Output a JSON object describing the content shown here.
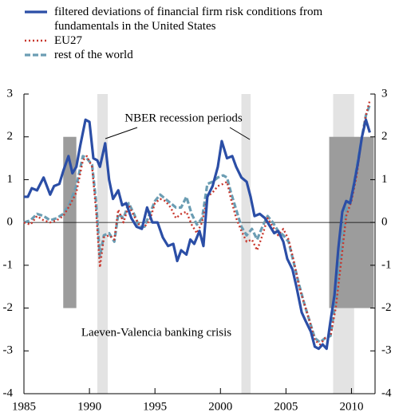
{
  "chart_data": {
    "type": "line",
    "xlim": [
      1985,
      2011.8
    ],
    "xticks": [
      1985,
      1990,
      1995,
      2000,
      2005,
      2010
    ],
    "ylim": [
      -4,
      3
    ],
    "yticks": [
      -4,
      -3,
      -2,
      -1,
      0,
      1,
      2,
      3
    ],
    "y2lim": [
      -4,
      3
    ],
    "y2ticks": [
      -4,
      -3,
      -2,
      -1,
      0,
      1,
      2,
      3
    ],
    "annotations": [
      "NBER recession periods",
      "Laeven-Valencia banking crisis"
    ],
    "recessions": [
      [
        1990.6,
        1991.4
      ],
      [
        2001.6,
        2002.3
      ],
      [
        2008.6,
        2010.2
      ]
    ],
    "banking_crises": [
      {
        "start": 1988.0,
        "end": 1989.0,
        "low": -2,
        "high": 2
      },
      {
        "start": 2008.3,
        "end": 2011.7,
        "low": -2,
        "high": 2
      }
    ],
    "series": [
      {
        "name": "filtered deviations of  financial firm risk conditions from fundamentals in the United States",
        "color": "#2b4ea6",
        "style": "solid",
        "x": [
          1985.0,
          1985.3,
          1985.6,
          1986.0,
          1986.5,
          1987.0,
          1987.3,
          1987.7,
          1988.0,
          1988.4,
          1988.7,
          1989.0,
          1989.3,
          1989.7,
          1990.0,
          1990.3,
          1990.6,
          1990.8,
          1991.2,
          1991.5,
          1991.8,
          1992.2,
          1992.5,
          1992.8,
          1993.2,
          1993.6,
          1994.0,
          1994.4,
          1994.8,
          1995.2,
          1995.6,
          1996.0,
          1996.4,
          1996.7,
          1997.0,
          1997.4,
          1997.7,
          1998.0,
          1998.4,
          1998.7,
          1999.0,
          1999.4,
          1999.8,
          2000.1,
          2000.5,
          2000.9,
          2001.2,
          2001.6,
          2002.0,
          2002.3,
          2002.6,
          2003.0,
          2003.4,
          2003.8,
          2004.1,
          2004.4,
          2004.8,
          2005.1,
          2005.5,
          2005.8,
          2006.2,
          2006.5,
          2006.9,
          2007.2,
          2007.5,
          2007.8,
          2008.1,
          2008.4,
          2008.7,
          2009.0,
          2009.3,
          2009.6,
          2009.9,
          2010.2,
          2010.5,
          2010.8,
          2011.1,
          2011.4
        ],
        "values": [
          0.6,
          0.6,
          0.8,
          0.75,
          1.05,
          0.65,
          0.85,
          0.9,
          1.2,
          1.55,
          1.15,
          1.3,
          1.8,
          2.4,
          2.35,
          1.5,
          1.45,
          1.3,
          1.85,
          1.0,
          0.55,
          0.75,
          0.4,
          0.45,
          0.1,
          -0.1,
          -0.15,
          0.35,
          0.0,
          0.0,
          -0.35,
          -0.55,
          -0.5,
          -0.9,
          -0.65,
          -0.75,
          -0.4,
          -0.5,
          -0.2,
          -0.55,
          0.6,
          0.85,
          1.3,
          1.9,
          1.5,
          1.55,
          1.3,
          1.05,
          0.95,
          0.6,
          0.15,
          0.2,
          0.1,
          -0.1,
          -0.25,
          -0.2,
          -0.45,
          -0.85,
          -1.1,
          -1.5,
          -2.1,
          -2.3,
          -2.55,
          -2.9,
          -2.95,
          -2.85,
          -2.95,
          -2.3,
          -1.7,
          -0.6,
          0.25,
          0.5,
          0.45,
          0.9,
          1.4,
          2.0,
          2.4,
          2.1
        ]
      },
      {
        "name": "EU27",
        "color": "#c8372d",
        "style": "dotted",
        "x": [
          1985.0,
          1985.5,
          1986.0,
          1986.5,
          1987.0,
          1987.5,
          1988.0,
          1988.5,
          1989.0,
          1989.5,
          1989.8,
          1990.2,
          1990.5,
          1990.8,
          1991.1,
          1991.5,
          1991.9,
          1992.2,
          1992.6,
          1993.0,
          1993.4,
          1993.8,
          1994.2,
          1994.6,
          1995.0,
          1995.4,
          1995.8,
          1996.2,
          1996.6,
          1997.0,
          1997.4,
          1997.8,
          1998.2,
          1998.6,
          1999.0,
          1999.4,
          1999.8,
          2000.2,
          2000.5,
          2000.8,
          2001.2,
          2001.6,
          2002.0,
          2002.4,
          2002.8,
          2003.2,
          2003.6,
          2004.0,
          2004.4,
          2004.8,
          2005.2,
          2005.6,
          2006.0,
          2006.4,
          2006.8,
          2007.2,
          2007.6,
          2008.0,
          2008.4,
          2008.8,
          2009.2,
          2009.6,
          2010.0,
          2010.4,
          2010.8,
          2011.1,
          2011.4
        ],
        "values": [
          0.0,
          -0.05,
          0.15,
          0.05,
          0.0,
          0.05,
          0.15,
          0.4,
          0.7,
          1.45,
          1.55,
          1.3,
          0.3,
          -1.05,
          -0.35,
          -0.3,
          -0.4,
          0.3,
          0.0,
          0.4,
          0.15,
          -0.05,
          -0.1,
          0.05,
          0.45,
          0.55,
          0.5,
          0.35,
          0.1,
          0.2,
          0.25,
          -0.05,
          -0.25,
          0.0,
          0.6,
          0.7,
          0.85,
          0.9,
          0.95,
          0.55,
          0.1,
          -0.2,
          -0.45,
          -0.4,
          -0.65,
          -0.3,
          0.1,
          -0.1,
          -0.3,
          -0.15,
          -0.4,
          -0.9,
          -1.5,
          -1.9,
          -2.3,
          -2.75,
          -2.85,
          -2.7,
          -2.65,
          -2.0,
          -0.95,
          0.15,
          0.5,
          1.1,
          2.0,
          2.5,
          2.85
        ]
      },
      {
        "name": "rest of the world",
        "color": "#6b9db3",
        "style": "dashed",
        "x": [
          1985.0,
          1985.5,
          1986.0,
          1986.5,
          1987.0,
          1987.5,
          1988.0,
          1988.5,
          1989.0,
          1989.5,
          1989.8,
          1990.2,
          1990.5,
          1990.8,
          1991.1,
          1991.5,
          1991.9,
          1992.2,
          1992.6,
          1993.0,
          1993.4,
          1993.8,
          1994.2,
          1994.6,
          1995.0,
          1995.4,
          1995.8,
          1996.2,
          1996.6,
          1997.0,
          1997.4,
          1997.8,
          1998.2,
          1998.6,
          1999.0,
          1999.4,
          1999.8,
          2000.2,
          2000.5,
          2000.8,
          2001.2,
          2001.6,
          2002.0,
          2002.4,
          2002.8,
          2003.2,
          2003.6,
          2004.0,
          2004.4,
          2004.8,
          2005.2,
          2005.6,
          2006.0,
          2006.4,
          2006.8,
          2007.2,
          2007.6,
          2008.0,
          2008.4,
          2008.8,
          2009.2,
          2009.6,
          2010.0,
          2010.4,
          2010.8,
          2011.1,
          2011.4
        ],
        "values": [
          0.0,
          0.05,
          0.2,
          0.15,
          0.05,
          0.1,
          0.2,
          0.45,
          0.85,
          1.55,
          1.5,
          1.35,
          0.5,
          -0.8,
          -0.3,
          -0.25,
          -0.45,
          0.2,
          0.1,
          0.45,
          0.2,
          -0.1,
          -0.1,
          0.2,
          0.5,
          0.65,
          0.55,
          0.45,
          0.35,
          0.35,
          0.6,
          0.2,
          -0.05,
          0.1,
          0.9,
          0.95,
          1.05,
          1.1,
          1.05,
          0.7,
          0.3,
          -0.1,
          -0.3,
          -0.15,
          -0.4,
          -0.1,
          0.15,
          0.0,
          -0.2,
          -0.3,
          -0.45,
          -0.95,
          -1.45,
          -1.9,
          -2.3,
          -2.7,
          -2.8,
          -2.7,
          -2.65,
          -1.8,
          -0.7,
          0.3,
          0.6,
          1.3,
          2.0,
          2.5,
          2.75
        ]
      }
    ]
  }
}
